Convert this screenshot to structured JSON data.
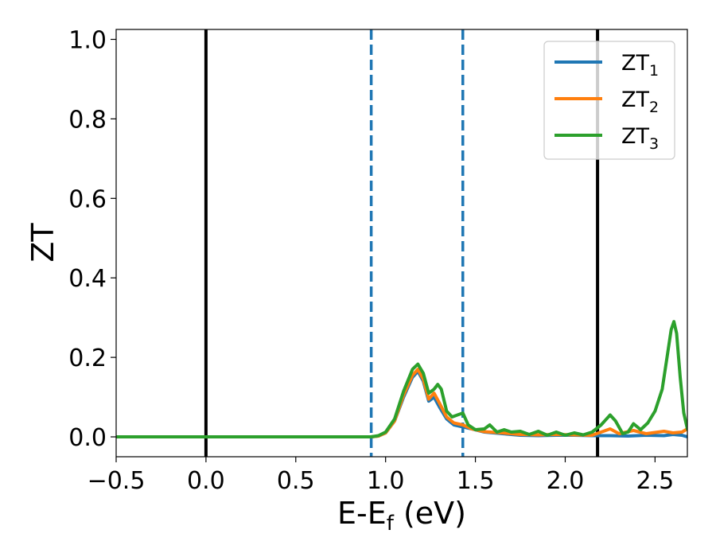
{
  "chart_data": {
    "type": "line",
    "xlabel": "E-E",
    "xlabel_sub": "f",
    "xlabel_tail": " (eV)",
    "ylabel": "ZT",
    "xlim": [
      -0.5,
      2.68
    ],
    "ylim": [
      -0.05,
      1.025
    ],
    "xticks": [
      -0.5,
      0.0,
      0.5,
      1.0,
      1.5,
      2.0,
      2.5
    ],
    "xtick_labels": [
      "−0.5",
      "0.0",
      "0.5",
      "1.0",
      "1.5",
      "2.0",
      "2.5"
    ],
    "yticks": [
      0.0,
      0.2,
      0.4,
      0.6,
      0.8,
      1.0
    ],
    "ytick_labels": [
      "0.0",
      "0.2",
      "0.4",
      "0.6",
      "0.8",
      "1.0"
    ],
    "grid": false,
    "legend_position": "top-right",
    "vertical_lines": [
      {
        "x": 0.0,
        "color": "#000000",
        "style": "solid"
      },
      {
        "x": 2.18,
        "color": "#000000",
        "style": "solid"
      },
      {
        "x": 0.92,
        "color": "#1f77b4",
        "style": "dashed"
      },
      {
        "x": 1.43,
        "color": "#1f77b4",
        "style": "dashed"
      }
    ],
    "series": [
      {
        "name": "ZT",
        "sub": "1",
        "color": "#1f77b4",
        "points": [
          [
            -0.5,
            0
          ],
          [
            0.92,
            0
          ],
          [
            0.96,
            0.002
          ],
          [
            1.0,
            0.01
          ],
          [
            1.05,
            0.04
          ],
          [
            1.1,
            0.1
          ],
          [
            1.15,
            0.15
          ],
          [
            1.18,
            0.165
          ],
          [
            1.21,
            0.14
          ],
          [
            1.24,
            0.09
          ],
          [
            1.27,
            0.1
          ],
          [
            1.3,
            0.075
          ],
          [
            1.34,
            0.045
          ],
          [
            1.38,
            0.03
          ],
          [
            1.43,
            0.025
          ],
          [
            1.48,
            0.02
          ],
          [
            1.55,
            0.012
          ],
          [
            1.65,
            0.008
          ],
          [
            1.75,
            0.004
          ],
          [
            1.85,
            0.003
          ],
          [
            1.95,
            0.004
          ],
          [
            2.05,
            0.004
          ],
          [
            2.15,
            0.003
          ],
          [
            2.25,
            0.003
          ],
          [
            2.35,
            0.002
          ],
          [
            2.45,
            0.004
          ],
          [
            2.55,
            0.003
          ],
          [
            2.6,
            0.006
          ],
          [
            2.65,
            0.004
          ],
          [
            2.68,
            0
          ]
        ]
      },
      {
        "name": "ZT",
        "sub": "2",
        "color": "#ff7f0e",
        "points": [
          [
            -0.5,
            0
          ],
          [
            0.92,
            0
          ],
          [
            0.96,
            0.002
          ],
          [
            1.0,
            0.01
          ],
          [
            1.05,
            0.04
          ],
          [
            1.1,
            0.105
          ],
          [
            1.15,
            0.155
          ],
          [
            1.18,
            0.17
          ],
          [
            1.21,
            0.145
          ],
          [
            1.24,
            0.095
          ],
          [
            1.27,
            0.11
          ],
          [
            1.3,
            0.085
          ],
          [
            1.34,
            0.05
          ],
          [
            1.38,
            0.035
          ],
          [
            1.43,
            0.03
          ],
          [
            1.48,
            0.02
          ],
          [
            1.55,
            0.013
          ],
          [
            1.65,
            0.01
          ],
          [
            1.75,
            0.006
          ],
          [
            1.85,
            0.005
          ],
          [
            1.95,
            0.006
          ],
          [
            2.05,
            0.005
          ],
          [
            2.15,
            0.004
          ],
          [
            2.2,
            0.012
          ],
          [
            2.25,
            0.02
          ],
          [
            2.3,
            0.008
          ],
          [
            2.38,
            0.016
          ],
          [
            2.45,
            0.008
          ],
          [
            2.55,
            0.014
          ],
          [
            2.6,
            0.01
          ],
          [
            2.65,
            0.012
          ],
          [
            2.68,
            0.02
          ]
        ]
      },
      {
        "name": "ZT",
        "sub": "3",
        "color": "#2ca02c",
        "points": [
          [
            -0.5,
            0
          ],
          [
            0.92,
            0
          ],
          [
            0.96,
            0.003
          ],
          [
            1.0,
            0.012
          ],
          [
            1.05,
            0.045
          ],
          [
            1.1,
            0.115
          ],
          [
            1.15,
            0.17
          ],
          [
            1.18,
            0.183
          ],
          [
            1.21,
            0.16
          ],
          [
            1.24,
            0.11
          ],
          [
            1.27,
            0.12
          ],
          [
            1.29,
            0.132
          ],
          [
            1.31,
            0.12
          ],
          [
            1.34,
            0.065
          ],
          [
            1.37,
            0.05
          ],
          [
            1.4,
            0.055
          ],
          [
            1.43,
            0.06
          ],
          [
            1.46,
            0.03
          ],
          [
            1.5,
            0.018
          ],
          [
            1.55,
            0.02
          ],
          [
            1.58,
            0.03
          ],
          [
            1.62,
            0.012
          ],
          [
            1.66,
            0.018
          ],
          [
            1.7,
            0.012
          ],
          [
            1.75,
            0.014
          ],
          [
            1.8,
            0.006
          ],
          [
            1.85,
            0.014
          ],
          [
            1.9,
            0.004
          ],
          [
            1.95,
            0.012
          ],
          [
            2.0,
            0.004
          ],
          [
            2.05,
            0.01
          ],
          [
            2.1,
            0.005
          ],
          [
            2.15,
            0.012
          ],
          [
            2.2,
            0.03
          ],
          [
            2.25,
            0.055
          ],
          [
            2.28,
            0.04
          ],
          [
            2.32,
            0.008
          ],
          [
            2.35,
            0.012
          ],
          [
            2.38,
            0.033
          ],
          [
            2.42,
            0.018
          ],
          [
            2.46,
            0.035
          ],
          [
            2.5,
            0.065
          ],
          [
            2.54,
            0.12
          ],
          [
            2.57,
            0.21
          ],
          [
            2.59,
            0.27
          ],
          [
            2.605,
            0.29
          ],
          [
            2.62,
            0.26
          ],
          [
            2.64,
            0.15
          ],
          [
            2.66,
            0.06
          ],
          [
            2.68,
            0.02
          ]
        ]
      }
    ]
  }
}
